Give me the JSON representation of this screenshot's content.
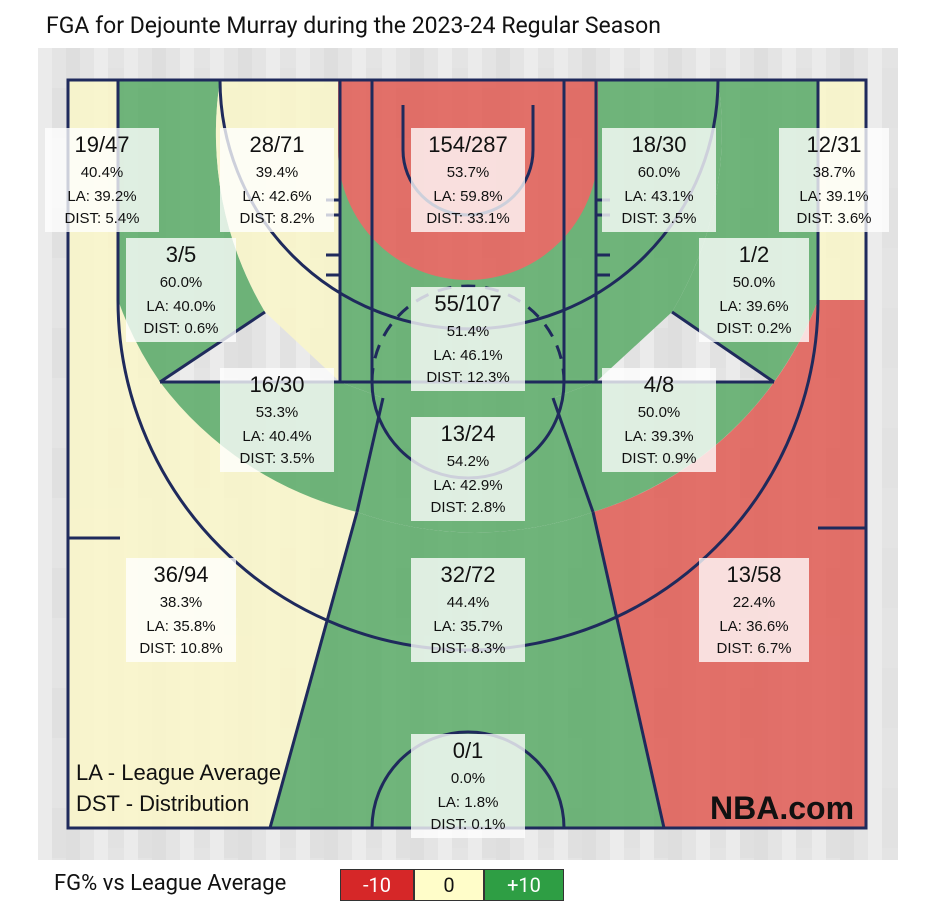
{
  "title": "FGA for Dejounte Murray during the 2023-24 Regular Season",
  "legend": {
    "title": "FG% vs League Average",
    "items": [
      {
        "label": "-10",
        "color": "#d62728",
        "text_color": "#ffffff"
      },
      {
        "label": "0",
        "color": "#fffdc9",
        "text_color": "#111111"
      },
      {
        "label": "+10",
        "color": "#2e9e44",
        "text_color": "#ffffff"
      }
    ]
  },
  "notes": [
    "LA - League Average",
    "DST - Distribution"
  ],
  "watermark": "NBA.com",
  "colors": {
    "red": "#e15b53",
    "green": "#5aab67",
    "yellow": "#fbf7c9",
    "lines": "#1f2a5c",
    "bg": "#e6e6e6"
  },
  "chart_data": {
    "type": "table",
    "player": "Dejounte Murray",
    "season": "2023-24 Regular Season",
    "zones": [
      {
        "zone": "left-corner-3",
        "fgm_fga": "19/47",
        "fg_pct": "40.4%",
        "la": "LA: 39.2%",
        "dist": "DIST: 5.4%",
        "rating": "yellow"
      },
      {
        "zone": "left-wing-mid",
        "fgm_fga": "28/71",
        "fg_pct": "39.4%",
        "la": "LA: 42.6%",
        "dist": "DIST: 8.2%",
        "rating": "yellow"
      },
      {
        "zone": "restricted-area",
        "fgm_fga": "154/287",
        "fg_pct": "53.7%",
        "la": "LA: 59.8%",
        "dist": "DIST: 33.1%",
        "rating": "red"
      },
      {
        "zone": "right-wing-mid",
        "fgm_fga": "18/30",
        "fg_pct": "60.0%",
        "la": "LA: 43.1%",
        "dist": "DIST: 3.5%",
        "rating": "green"
      },
      {
        "zone": "right-corner-3",
        "fgm_fga": "12/31",
        "fg_pct": "38.7%",
        "la": "LA: 39.1%",
        "dist": "DIST: 3.6%",
        "rating": "yellow"
      },
      {
        "zone": "left-baseline-mid",
        "fgm_fga": "3/5",
        "fg_pct": "60.0%",
        "la": "LA: 40.0%",
        "dist": "DIST: 0.6%",
        "rating": "green"
      },
      {
        "zone": "paint-non-ra",
        "fgm_fga": "55/107",
        "fg_pct": "51.4%",
        "la": "LA: 46.1%",
        "dist": "DIST: 12.3%",
        "rating": "green"
      },
      {
        "zone": "right-baseline-mid",
        "fgm_fga": "1/2",
        "fg_pct": "50.0%",
        "la": "LA: 39.6%",
        "dist": "DIST: 0.2%",
        "rating": "green"
      },
      {
        "zone": "left-elbow-mid",
        "fgm_fga": "16/30",
        "fg_pct": "53.3%",
        "la": "LA: 40.4%",
        "dist": "DIST: 3.5%",
        "rating": "green"
      },
      {
        "zone": "top-key-mid",
        "fgm_fga": "13/24",
        "fg_pct": "54.2%",
        "la": "LA: 42.9%",
        "dist": "DIST: 2.8%",
        "rating": "green"
      },
      {
        "zone": "right-elbow-mid",
        "fgm_fga": "4/8",
        "fg_pct": "50.0%",
        "la": "LA: 39.3%",
        "dist": "DIST: 0.9%",
        "rating": "green"
      },
      {
        "zone": "left-wing-3",
        "fgm_fga": "36/94",
        "fg_pct": "38.3%",
        "la": "LA: 35.8%",
        "dist": "DIST: 10.8%",
        "rating": "yellow"
      },
      {
        "zone": "top-key-3",
        "fgm_fga": "32/72",
        "fg_pct": "44.4%",
        "la": "LA: 35.7%",
        "dist": "DIST: 8.3%",
        "rating": "green"
      },
      {
        "zone": "right-wing-3",
        "fgm_fga": "13/58",
        "fg_pct": "22.4%",
        "la": "LA: 36.6%",
        "dist": "DIST: 6.7%",
        "rating": "red"
      },
      {
        "zone": "backcourt",
        "fgm_fga": "0/1",
        "fg_pct": "0.0%",
        "la": "LA: 1.8%",
        "dist": "DIST: 0.1%",
        "rating": "green"
      }
    ]
  }
}
